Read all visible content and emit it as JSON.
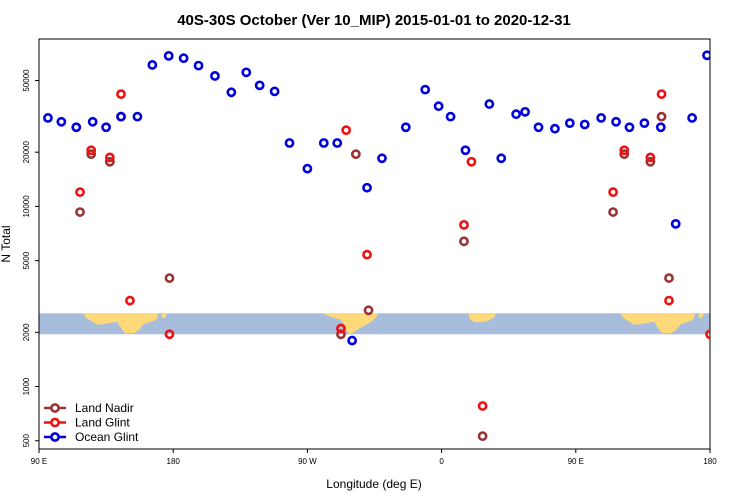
{
  "chart_data": {
    "type": "scatter",
    "title": "40S-30S October (Ver 10_MIP)   2015-01-01 to 2020-12-31",
    "xlabel": "Longitude (deg E)",
    "ylabel": "N Total",
    "y_scale": "log",
    "xlim": [
      90,
      540
    ],
    "ylim": [
      450,
      85000
    ],
    "x_ticks": [
      {
        "value": 90,
        "label": "90 E"
      },
      {
        "value": 180,
        "label": "180"
      },
      {
        "value": 270,
        "label": "90 W"
      },
      {
        "value": 360,
        "label": "0"
      },
      {
        "value": 450,
        "label": "90 E"
      },
      {
        "value": 540,
        "label": "180"
      }
    ],
    "y_ticks": [
      {
        "value": 500,
        "label": "500"
      },
      {
        "value": 1000,
        "label": "1000"
      },
      {
        "value": 2000,
        "label": "2000"
      },
      {
        "value": 5000,
        "label": "5000"
      },
      {
        "value": 10000,
        "label": "10000"
      },
      {
        "value": 20000,
        "label": "20000"
      },
      {
        "value": 50000,
        "label": "50000"
      }
    ],
    "legend_position": "bottom-left",
    "map_band": {
      "y_range": [
        1950,
        2550
      ],
      "color": "#a8bcdc",
      "land_color": "#fdd97a"
    },
    "series": [
      {
        "name": "Land Nadir",
        "color": "#993333",
        "x": [
          117.5,
          125,
          137.5,
          145,
          177.5,
          292.5,
          302.5,
          311,
          375,
          387.5,
          475,
          482.5,
          500,
          507.5,
          512.5
        ],
        "y": [
          9300,
          19500,
          17700,
          31500,
          4000,
          1950,
          19500,
          2650,
          6400,
          530,
          9300,
          19500,
          17700,
          31500,
          4000
        ]
      },
      {
        "name": "Land Glint",
        "color": "#ee1111",
        "x": [
          117.5,
          125,
          137.5,
          145,
          151,
          177.5,
          292.5,
          296,
          310,
          375,
          380,
          387.5,
          475,
          482.5,
          500,
          507.5,
          512.5,
          540
        ],
        "y": [
          12000,
          20500,
          18700,
          42000,
          3000,
          1950,
          2100,
          26500,
          5400,
          7900,
          17700,
          780,
          12000,
          20500,
          18700,
          42000,
          3000,
          1950
        ]
      },
      {
        "name": "Ocean Glint",
        "color": "#0000dd",
        "x": [
          96,
          105,
          115,
          126,
          135,
          145,
          156,
          166,
          177,
          187,
          197,
          208,
          219,
          229,
          238,
          248,
          258,
          270,
          281,
          290,
          300,
          310,
          320,
          336,
          349,
          358,
          366,
          376,
          392,
          400,
          410,
          416,
          425,
          436,
          446,
          456,
          467,
          477,
          486,
          496,
          507,
          517,
          528,
          538
        ],
        "y": [
          31000,
          29500,
          27500,
          29500,
          27500,
          31500,
          31500,
          61000,
          68500,
          66500,
          60500,
          53000,
          43000,
          55500,
          47000,
          43500,
          22500,
          16200,
          22500,
          22500,
          1800,
          12700,
          18500,
          27500,
          44500,
          36000,
          31500,
          20500,
          37000,
          18500,
          32500,
          33500,
          27500,
          27000,
          29000,
          28500,
          31000,
          29500,
          27500,
          29000,
          27500,
          8000,
          31000,
          69000
        ]
      }
    ]
  }
}
